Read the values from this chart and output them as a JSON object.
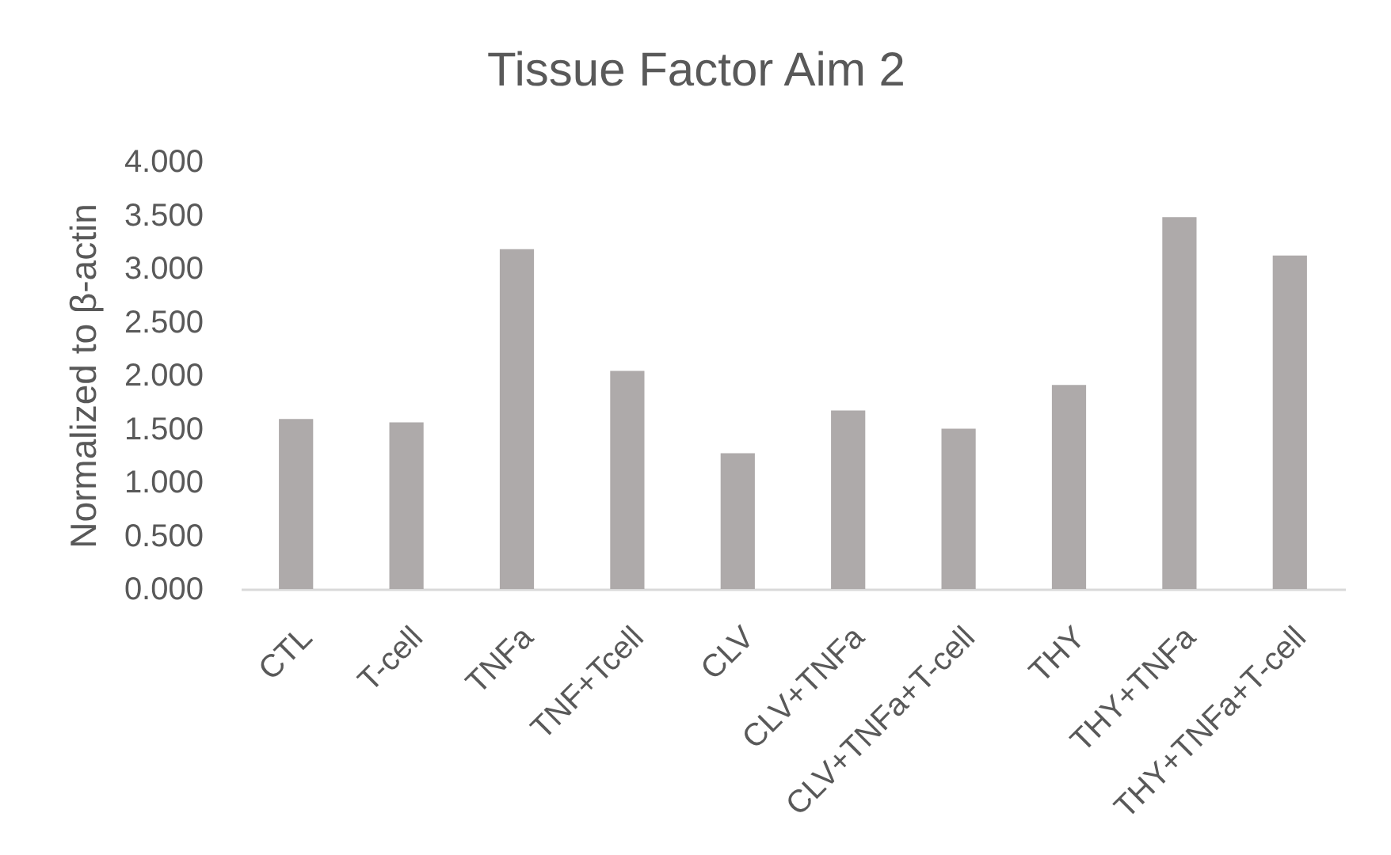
{
  "chart_data": {
    "type": "bar",
    "title": "Tissue Factor Aim 2",
    "ylabel": "Normalized to β-actin",
    "categories": [
      "CTL",
      "T-cell",
      "TNFa",
      "TNF+Tcell",
      "CLV",
      "CLV+TNFa",
      "CLV+TNFa+T-cell",
      "THY",
      "THY+TNFa",
      "THY+TNFa+T-cell"
    ],
    "values": [
      1.59,
      1.56,
      3.18,
      2.04,
      1.27,
      1.67,
      1.5,
      1.91,
      3.48,
      3.12
    ],
    "color": "#aeaaaa",
    "ylim": [
      0,
      4
    ],
    "yticks": [
      {
        "value": 0,
        "label": "0.000"
      },
      {
        "value": 0.5,
        "label": "0.500"
      },
      {
        "value": 1,
        "label": "1.000"
      },
      {
        "value": 1.5,
        "label": "1.500"
      },
      {
        "value": 2,
        "label": "2.000"
      },
      {
        "value": 2.5,
        "label": "2.500"
      },
      {
        "value": 3,
        "label": "3.000"
      },
      {
        "value": 3.5,
        "label": "3.500"
      },
      {
        "value": 4,
        "label": "4.000"
      }
    ]
  }
}
